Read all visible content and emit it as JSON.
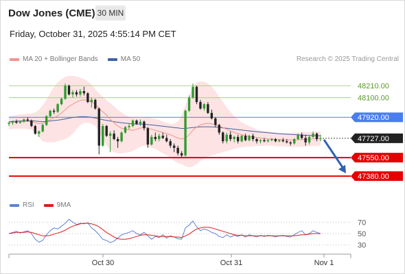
{
  "header": {
    "title": "Dow Jones (CME)",
    "timeframe": "30 MIN"
  },
  "datetime": "Friday, October 31, 2025 4:55:14 PM CET",
  "legend": {
    "ma20_label": "MA 20 + Bollinger Bands",
    "ma50_label": "MA 50",
    "ma20_color": "#f2938c",
    "ma50_color": "#3f5fa8"
  },
  "copyright": "Research © 2025 Trading Central",
  "rsi_legend": {
    "rsi_label": "RSI",
    "ma9_label": "9MA",
    "rsi_color": "#5b82d9",
    "ma9_color": "#e01a1a"
  },
  "colors": {
    "up": "#2e9b2e",
    "down": "#222222",
    "band_fill": "#fde3e3",
    "green_level": "#a8d08a",
    "blue_level": "#4a7df0",
    "red_level": "#e60000",
    "arrow": "#2f62ae",
    "current": "#222222"
  },
  "chart_data": {
    "type": "candlestick",
    "ylim": [
      47230,
      48330
    ],
    "x_ticks": [
      "Oct 30",
      "Oct 31",
      "Nov 1"
    ],
    "levels": [
      {
        "value": 48210.0,
        "label": "48210.00",
        "kind": "resistance-green"
      },
      {
        "value": 48100.0,
        "label": "48100.00",
        "kind": "resistance-green"
      },
      {
        "value": 47920.0,
        "label": "47920.00",
        "kind": "resistance-blue"
      },
      {
        "value": 47727.0,
        "label": "47727.00",
        "kind": "current"
      },
      {
        "value": 47550.0,
        "label": "47550.00",
        "kind": "support-red"
      },
      {
        "value": 47380.0,
        "label": "47380.00",
        "kind": "support-red"
      }
    ],
    "candles": [
      [
        47860,
        47880,
        47840,
        47870
      ],
      [
        47870,
        47890,
        47850,
        47880
      ],
      [
        47880,
        47900,
        47860,
        47870
      ],
      [
        47870,
        47890,
        47860,
        47880
      ],
      [
        47880,
        47910,
        47870,
        47900
      ],
      [
        47900,
        47920,
        47880,
        47890
      ],
      [
        47890,
        47900,
        47830,
        47840
      ],
      [
        47840,
        47850,
        47760,
        47770
      ],
      [
        47770,
        47800,
        47740,
        47790
      ],
      [
        47790,
        47860,
        47780,
        47850
      ],
      [
        47850,
        47940,
        47840,
        47930
      ],
      [
        47930,
        47990,
        47920,
        47980
      ],
      [
        47980,
        48000,
        47950,
        47970
      ],
      [
        47970,
        48050,
        47960,
        48040
      ],
      [
        48040,
        48100,
        48030,
        48090
      ],
      [
        48090,
        48230,
        48080,
        48210
      ],
      [
        48210,
        48220,
        48120,
        48130
      ],
      [
        48130,
        48170,
        48100,
        48150
      ],
      [
        48150,
        48170,
        48110,
        48130
      ],
      [
        48130,
        48180,
        48110,
        48160
      ],
      [
        48160,
        48200,
        48120,
        48140
      ],
      [
        48140,
        48150,
        48050,
        48060
      ],
      [
        48060,
        48100,
        48010,
        48080
      ],
      [
        48080,
        48090,
        47990,
        48000
      ],
      [
        48000,
        48010,
        47580,
        47660
      ],
      [
        47660,
        47860,
        47650,
        47840
      ],
      [
        47840,
        47850,
        47740,
        47750
      ],
      [
        47750,
        47790,
        47600,
        47770
      ],
      [
        47770,
        47800,
        47710,
        47720
      ],
      [
        47720,
        47740,
        47640,
        47700
      ],
      [
        47700,
        47790,
        47690,
        47780
      ],
      [
        47780,
        47840,
        47770,
        47830
      ],
      [
        47830,
        47860,
        47810,
        47840
      ],
      [
        47840,
        47900,
        47830,
        47890
      ],
      [
        47890,
        47900,
        47850,
        47860
      ],
      [
        47860,
        47900,
        47840,
        47880
      ],
      [
        47880,
        47890,
        47800,
        47820
      ],
      [
        47820,
        47830,
        47640,
        47670
      ],
      [
        47670,
        47760,
        47660,
        47740
      ],
      [
        47740,
        47780,
        47700,
        47720
      ],
      [
        47720,
        47770,
        47700,
        47750
      ],
      [
        47750,
        47780,
        47720,
        47730
      ],
      [
        47730,
        47760,
        47690,
        47700
      ],
      [
        47700,
        47720,
        47640,
        47660
      ],
      [
        47660,
        47680,
        47600,
        47640
      ],
      [
        47640,
        47660,
        47570,
        47590
      ],
      [
        47590,
        47610,
        47550,
        47570
      ],
      [
        47570,
        47990,
        47560,
        47980
      ],
      [
        47980,
        48120,
        47970,
        48100
      ],
      [
        48100,
        48230,
        48090,
        48200
      ],
      [
        48200,
        48210,
        48040,
        48060
      ],
      [
        48060,
        48080,
        47990,
        48000
      ],
      [
        48000,
        48050,
        47980,
        48040
      ],
      [
        48040,
        48060,
        47950,
        47960
      ],
      [
        47960,
        47990,
        47900,
        47910
      ],
      [
        47910,
        47920,
        47830,
        47850
      ],
      [
        47850,
        47860,
        47760,
        47780
      ],
      [
        47780,
        47790,
        47680,
        47700
      ],
      [
        47700,
        47780,
        47680,
        47760
      ],
      [
        47760,
        47790,
        47700,
        47720
      ],
      [
        47720,
        47750,
        47690,
        47740
      ],
      [
        47740,
        47760,
        47680,
        47700
      ],
      [
        47700,
        47760,
        47690,
        47750
      ],
      [
        47750,
        47770,
        47700,
        47710
      ],
      [
        47710,
        47760,
        47700,
        47750
      ],
      [
        47750,
        47770,
        47700,
        47720
      ],
      [
        47720,
        47730,
        47680,
        47700
      ],
      [
        47700,
        47720,
        47680,
        47710
      ],
      [
        47710,
        47730,
        47690,
        47700
      ],
      [
        47700,
        47720,
        47690,
        47710
      ],
      [
        47710,
        47730,
        47700,
        47720
      ],
      [
        47720,
        47730,
        47690,
        47700
      ],
      [
        47700,
        47720,
        47690,
        47710
      ],
      [
        47710,
        47730,
        47690,
        47700
      ],
      [
        47700,
        47720,
        47680,
        47690
      ],
      [
        47690,
        47700,
        47660,
        47680
      ],
      [
        47680,
        47730,
        47670,
        47720
      ],
      [
        47720,
        47770,
        47710,
        47760
      ],
      [
        47760,
        47780,
        47720,
        47730
      ],
      [
        47730,
        47760,
        47660,
        47690
      ],
      [
        47690,
        47750,
        47670,
        47740
      ],
      [
        47740,
        47790,
        47730,
        47770
      ],
      [
        47770,
        47780,
        47700,
        47720
      ],
      [
        47720,
        47760,
        47700,
        47727
      ]
    ],
    "ma20": [
      47870,
      47875,
      47878,
      47880,
      47882,
      47884,
      47880,
      47870,
      47862,
      47865,
      47880,
      47900,
      47915,
      47935,
      47960,
      47990,
      48020,
      48040,
      48060,
      48075,
      48080,
      48075,
      48060,
      48040,
      48000,
      47970,
      47940,
      47900,
      47870,
      47840,
      47820,
      47810,
      47805,
      47800,
      47810,
      47820,
      47830,
      47820,
      47810,
      47800,
      47790,
      47780,
      47770,
      47760,
      47745,
      47730,
      47720,
      47730,
      47760,
      47800,
      47830,
      47850,
      47860,
      47865,
      47860,
      47850,
      47840,
      47825,
      47810,
      47795,
      47780,
      47770,
      47760,
      47750,
      47745,
      47740,
      47735,
      47730,
      47725,
      47722,
      47720,
      47718,
      47716,
      47715,
      47713,
      47712,
      47712,
      47714,
      47716,
      47718,
      47720,
      47722,
      47724,
      47726
    ],
    "ma50": [
      47880,
      47882,
      47884,
      47886,
      47888,
      47889,
      47888,
      47885,
      47882,
      47880,
      47882,
      47886,
      47890,
      47894,
      47899,
      47905,
      47912,
      47918,
      47922,
      47925,
      47926,
      47924,
      47920,
      47914,
      47905,
      47898,
      47892,
      47886,
      47880,
      47874,
      47870,
      47866,
      47863,
      47860,
      47858,
      47857,
      47856,
      47853,
      47850,
      47846,
      47842,
      47838,
      47834,
      47830,
      47826,
      47822,
      47818,
      47818,
      47822,
      47826,
      47830,
      47832,
      47833,
      47833,
      47832,
      47830,
      47827,
      47823,
      47819,
      47815,
      47811,
      47807,
      47803,
      47799,
      47795,
      47791,
      47787,
      47784,
      47781,
      47778,
      47775,
      47772,
      47769,
      47767,
      47765,
      47763,
      47761,
      47759,
      47757,
      47755,
      47753,
      47752,
      47751,
      47750
    ],
    "bb_upper": [
      47930,
      47935,
      47940,
      47945,
      47950,
      47952,
      47955,
      47965,
      47990,
      48030,
      48080,
      48140,
      48200,
      48240,
      48270,
      48290,
      48300,
      48300,
      48295,
      48285,
      48270,
      48250,
      48220,
      48180,
      48140,
      48110,
      48080,
      48050,
      48020,
      47990,
      47965,
      47940,
      47925,
      47915,
      47910,
      47910,
      47915,
      47915,
      47910,
      47905,
      47895,
      47880,
      47870,
      47860,
      47860,
      47880,
      47940,
      48030,
      48120,
      48200,
      48240,
      48250,
      48245,
      48230,
      48200,
      48160,
      48110,
      48060,
      48010,
      47970,
      47930,
      47900,
      47875,
      47855,
      47840,
      47825,
      47810,
      47800,
      47795,
      47790,
      47785,
      47780,
      47778,
      47776,
      47775,
      47776,
      47778,
      47780,
      47782,
      47784,
      47786,
      47788,
      47790,
      47792
    ],
    "bb_lower": [
      47810,
      47812,
      47814,
      47815,
      47814,
      47812,
      47805,
      47775,
      47735,
      47700,
      47690,
      47690,
      47690,
      47700,
      47710,
      47720,
      47740,
      47770,
      47810,
      47850,
      47870,
      47870,
      47860,
      47840,
      47780,
      47720,
      47660,
      47620,
      47600,
      47590,
      47590,
      47595,
      47600,
      47610,
      47630,
      47650,
      47660,
      47650,
      47640,
      47630,
      47610,
      47590,
      47570,
      47550,
      47520,
      47500,
      47490,
      47470,
      47460,
      47470,
      47490,
      47520,
      47540,
      47560,
      47570,
      47580,
      47590,
      47600,
      47610,
      47620,
      47630,
      47640,
      47645,
      47650,
      47652,
      47654,
      47656,
      47658,
      47660,
      47660,
      47658,
      47656,
      47654,
      47654,
      47651,
      47648,
      47646,
      47648,
      47650,
      47652,
      47654,
      47656,
      47658,
      47660
    ],
    "rsi": {
      "ticks": [
        70,
        50,
        30
      ],
      "ylim": [
        20,
        80
      ],
      "rsi": [
        50,
        52,
        54,
        51,
        53,
        55,
        50,
        40,
        35,
        38,
        48,
        55,
        60,
        58,
        63,
        68,
        75,
        70,
        66,
        68,
        67,
        69,
        60,
        55,
        48,
        40,
        38,
        34,
        37,
        42,
        48,
        50,
        52,
        55,
        50,
        48,
        52,
        46,
        40,
        45,
        43,
        48,
        42,
        46,
        44,
        41,
        40,
        60,
        65,
        72,
        62,
        55,
        58,
        56,
        52,
        50,
        45,
        43,
        48,
        44,
        47,
        45,
        48,
        44,
        48,
        46,
        44,
        47,
        45,
        47,
        46,
        44,
        46,
        47,
        45,
        44,
        48,
        52,
        55,
        48,
        50,
        55,
        52,
        50
      ],
      "ma9": [
        50,
        51,
        52,
        52,
        52,
        53,
        52,
        50,
        48,
        46,
        46,
        47,
        49,
        51,
        53,
        56,
        60,
        63,
        65,
        67,
        68,
        68,
        67,
        65,
        62,
        57,
        52,
        48,
        44,
        41,
        40,
        40,
        41,
        43,
        45,
        47,
        48,
        48,
        47,
        46,
        45,
        45,
        45,
        45,
        44,
        44,
        43,
        46,
        49,
        54,
        58,
        60,
        61,
        61,
        60,
        58,
        56,
        54,
        52,
        50,
        48,
        47,
        47,
        46,
        46,
        46,
        46,
        46,
        46,
        46,
        46,
        46,
        46,
        46,
        46,
        46,
        46,
        47,
        48,
        48,
        49,
        50,
        50,
        50
      ]
    }
  }
}
